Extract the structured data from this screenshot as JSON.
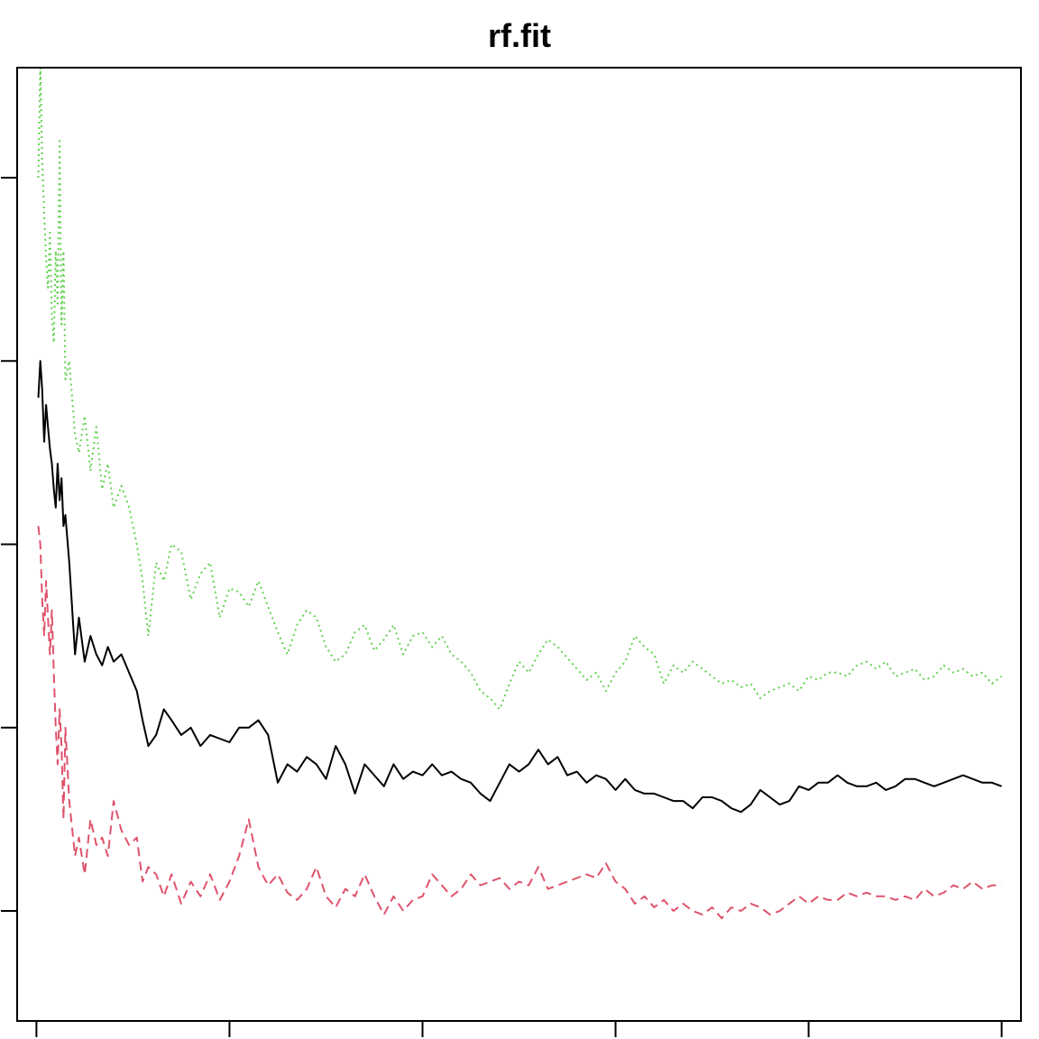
{
  "chart_data": {
    "type": "line",
    "title": "rf.fit",
    "xlabel": "",
    "ylabel": "",
    "xlim": [
      -10,
      510
    ],
    "ylim": [
      0.07,
      0.33
    ],
    "x_ticks": [
      0,
      100,
      200,
      300,
      400,
      500
    ],
    "y_ticks": [
      0.1,
      0.15,
      0.2,
      0.25,
      0.3
    ],
    "tick_labels_visible": false,
    "grid": false,
    "legend": "none",
    "series": [
      {
        "color": "#000000",
        "line_style": "solid",
        "x": [
          1,
          2,
          3,
          4,
          5,
          6,
          7,
          8,
          9,
          10,
          11,
          12,
          13,
          14,
          15,
          17,
          20,
          22,
          25,
          28,
          31,
          34,
          37,
          40,
          44,
          48,
          52,
          55,
          58,
          62,
          66,
          70,
          75,
          80,
          85,
          90,
          95,
          100,
          105,
          110,
          115,
          120,
          125,
          130,
          135,
          140,
          145,
          150,
          155,
          160,
          165,
          170,
          175,
          180,
          185,
          190,
          195,
          200,
          205,
          210,
          215,
          220,
          225,
          230,
          235,
          240,
          245,
          250,
          255,
          260,
          265,
          270,
          275,
          280,
          285,
          290,
          295,
          300,
          305,
          310,
          315,
          320,
          325,
          330,
          335,
          340,
          345,
          350,
          355,
          360,
          365,
          370,
          375,
          380,
          385,
          390,
          395,
          400,
          405,
          410,
          415,
          420,
          425,
          430,
          435,
          440,
          445,
          450,
          455,
          460,
          465,
          470,
          475,
          480,
          485,
          490,
          495,
          500
        ],
        "y": [
          0.24,
          0.25,
          0.242,
          0.228,
          0.238,
          0.232,
          0.226,
          0.222,
          0.215,
          0.21,
          0.222,
          0.212,
          0.218,
          0.205,
          0.208,
          0.195,
          0.17,
          0.18,
          0.168,
          0.175,
          0.17,
          0.167,
          0.172,
          0.168,
          0.17,
          0.165,
          0.16,
          0.152,
          0.145,
          0.148,
          0.155,
          0.152,
          0.148,
          0.15,
          0.145,
          0.148,
          0.147,
          0.146,
          0.15,
          0.15,
          0.152,
          0.148,
          0.135,
          0.14,
          0.138,
          0.142,
          0.14,
          0.136,
          0.145,
          0.14,
          0.132,
          0.14,
          0.137,
          0.134,
          0.14,
          0.136,
          0.138,
          0.137,
          0.14,
          0.137,
          0.138,
          0.136,
          0.135,
          0.132,
          0.13,
          0.135,
          0.14,
          0.138,
          0.14,
          0.144,
          0.14,
          0.142,
          0.137,
          0.138,
          0.135,
          0.137,
          0.136,
          0.133,
          0.136,
          0.133,
          0.132,
          0.132,
          0.131,
          0.13,
          0.13,
          0.128,
          0.131,
          0.131,
          0.13,
          0.128,
          0.127,
          0.129,
          0.133,
          0.131,
          0.129,
          0.13,
          0.134,
          0.133,
          0.135,
          0.135,
          0.137,
          0.135,
          0.134,
          0.134,
          0.135,
          0.133,
          0.134,
          0.136,
          0.136,
          0.135,
          0.134,
          0.135,
          0.136,
          0.137,
          0.136,
          0.135,
          0.135,
          0.134
        ]
      },
      {
        "color": "#df536b",
        "line_style": "dashed",
        "x": [
          1,
          2,
          3,
          4,
          5,
          6,
          7,
          8,
          9,
          10,
          11,
          12,
          13,
          14,
          15,
          17,
          20,
          22,
          25,
          28,
          31,
          34,
          37,
          40,
          44,
          48,
          52,
          55,
          58,
          62,
          66,
          70,
          75,
          80,
          85,
          90,
          95,
          100,
          105,
          110,
          115,
          120,
          125,
          130,
          135,
          140,
          145,
          150,
          155,
          160,
          165,
          170,
          175,
          180,
          185,
          190,
          195,
          200,
          205,
          210,
          215,
          220,
          225,
          230,
          235,
          240,
          245,
          250,
          255,
          260,
          265,
          270,
          275,
          280,
          285,
          290,
          295,
          300,
          305,
          310,
          315,
          320,
          325,
          330,
          335,
          340,
          345,
          350,
          355,
          360,
          365,
          370,
          375,
          380,
          385,
          390,
          395,
          400,
          405,
          410,
          415,
          420,
          425,
          430,
          435,
          440,
          445,
          450,
          455,
          460,
          465,
          470,
          475,
          480,
          485,
          490,
          495,
          500
        ],
        "y": [
          0.205,
          0.2,
          0.185,
          0.175,
          0.19,
          0.18,
          0.17,
          0.182,
          0.165,
          0.15,
          0.14,
          0.155,
          0.145,
          0.125,
          0.15,
          0.13,
          0.115,
          0.12,
          0.11,
          0.125,
          0.118,
          0.12,
          0.115,
          0.13,
          0.122,
          0.118,
          0.12,
          0.108,
          0.112,
          0.11,
          0.104,
          0.11,
          0.102,
          0.108,
          0.104,
          0.11,
          0.103,
          0.108,
          0.115,
          0.125,
          0.112,
          0.107,
          0.11,
          0.105,
          0.103,
          0.106,
          0.112,
          0.104,
          0.101,
          0.106,
          0.104,
          0.11,
          0.104,
          0.099,
          0.104,
          0.1,
          0.103,
          0.104,
          0.11,
          0.107,
          0.104,
          0.106,
          0.11,
          0.107,
          0.108,
          0.109,
          0.106,
          0.108,
          0.107,
          0.112,
          0.106,
          0.107,
          0.108,
          0.109,
          0.11,
          0.109,
          0.113,
          0.108,
          0.106,
          0.102,
          0.104,
          0.101,
          0.103,
          0.1,
          0.102,
          0.1,
          0.099,
          0.101,
          0.098,
          0.101,
          0.1,
          0.102,
          0.101,
          0.099,
          0.1,
          0.102,
          0.104,
          0.102,
          0.104,
          0.103,
          0.103,
          0.105,
          0.104,
          0.105,
          0.104,
          0.104,
          0.103,
          0.104,
          0.103,
          0.106,
          0.104,
          0.105,
          0.107,
          0.106,
          0.108,
          0.106,
          0.107,
          0.107
        ]
      },
      {
        "color": "#61d04f",
        "line_style": "dotted",
        "x": [
          1,
          2,
          3,
          4,
          5,
          6,
          7,
          8,
          9,
          10,
          11,
          12,
          13,
          14,
          15,
          17,
          20,
          22,
          25,
          28,
          31,
          34,
          37,
          40,
          44,
          48,
          52,
          55,
          58,
          62,
          66,
          70,
          75,
          80,
          85,
          90,
          95,
          100,
          105,
          110,
          115,
          120,
          125,
          130,
          135,
          140,
          145,
          150,
          155,
          160,
          165,
          170,
          175,
          180,
          185,
          190,
          195,
          200,
          205,
          210,
          215,
          220,
          225,
          230,
          235,
          240,
          245,
          250,
          255,
          260,
          265,
          270,
          275,
          280,
          285,
          290,
          295,
          300,
          305,
          310,
          315,
          320,
          325,
          330,
          335,
          340,
          345,
          350,
          355,
          360,
          365,
          370,
          375,
          380,
          385,
          390,
          395,
          400,
          405,
          410,
          415,
          420,
          425,
          430,
          435,
          440,
          445,
          450,
          455,
          460,
          465,
          470,
          475,
          480,
          485,
          490,
          495,
          500
        ],
        "y": [
          0.3,
          0.33,
          0.305,
          0.29,
          0.278,
          0.27,
          0.285,
          0.262,
          0.255,
          0.28,
          0.265,
          0.31,
          0.26,
          0.28,
          0.245,
          0.25,
          0.23,
          0.225,
          0.235,
          0.22,
          0.232,
          0.215,
          0.222,
          0.21,
          0.216,
          0.21,
          0.2,
          0.19,
          0.175,
          0.195,
          0.19,
          0.2,
          0.198,
          0.185,
          0.192,
          0.195,
          0.18,
          0.188,
          0.187,
          0.183,
          0.19,
          0.183,
          0.176,
          0.17,
          0.178,
          0.182,
          0.18,
          0.172,
          0.168,
          0.17,
          0.176,
          0.178,
          0.171,
          0.174,
          0.178,
          0.17,
          0.175,
          0.176,
          0.172,
          0.175,
          0.17,
          0.168,
          0.165,
          0.16,
          0.158,
          0.155,
          0.162,
          0.168,
          0.165,
          0.17,
          0.174,
          0.172,
          0.169,
          0.166,
          0.163,
          0.165,
          0.16,
          0.165,
          0.168,
          0.175,
          0.172,
          0.17,
          0.162,
          0.167,
          0.165,
          0.168,
          0.166,
          0.164,
          0.162,
          0.163,
          0.161,
          0.162,
          0.158,
          0.16,
          0.161,
          0.162,
          0.16,
          0.164,
          0.163,
          0.165,
          0.165,
          0.164,
          0.167,
          0.168,
          0.166,
          0.168,
          0.164,
          0.165,
          0.166,
          0.163,
          0.164,
          0.167,
          0.165,
          0.166,
          0.164,
          0.165,
          0.162,
          0.164
        ]
      }
    ]
  }
}
